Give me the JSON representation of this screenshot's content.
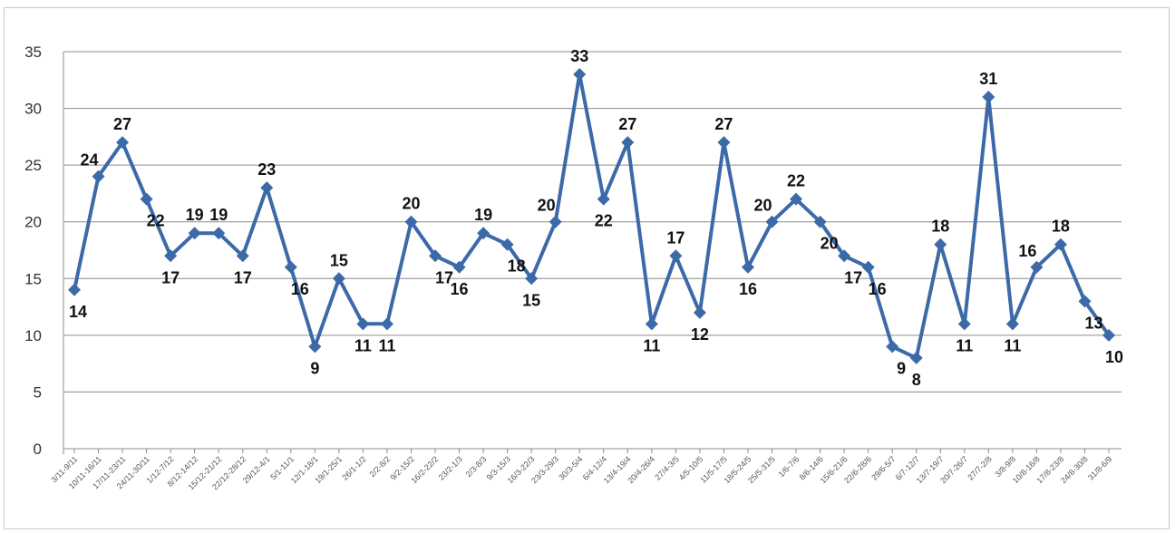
{
  "chart_data": {
    "type": "line",
    "title": "",
    "xlabel": "",
    "ylabel": "",
    "ylim": [
      0,
      35
    ],
    "yticks": [
      0,
      5,
      10,
      15,
      20,
      25,
      30,
      35
    ],
    "grid": true,
    "legend": "none",
    "line_color": "#3c6aa8",
    "categories": [
      "3/11-9/11",
      "10/11-16/11",
      "17/11-23/11",
      "24/11-30/11",
      "1/12-7/12",
      "8/12-14/12",
      "15/12-21/12",
      "22/12-28/12",
      "29/12-4/1",
      "5/1-11/1",
      "12/1-18/1",
      "19/1-25/1",
      "26/1-1/2",
      "2/2-8/2",
      "9/2-15/2",
      "16/2-22/2",
      "23/2-1/3",
      "2/3-8/3",
      "9/3-15/3",
      "16/3-22/3",
      "23/3-29/3",
      "30/3-5/4",
      "6/4-12/4",
      "13/4-19/4",
      "20/4-26/4",
      "27/4-3/5",
      "4/5-10/5",
      "11/5-17/5",
      "18/5-24/5",
      "25/5-31/5",
      "1/6-7/6",
      "8/6-14/6",
      "15/6-21/6",
      "22/6-28/6",
      "29/6-5/7",
      "6/7-12/7",
      "13/7-19/7",
      "20/7-26/7",
      "27/7-2/8",
      "3/8-9/8",
      "10/8-16/8",
      "17/8-23/8",
      "24/8-30/8",
      "31/8-6/9"
    ],
    "values": [
      14,
      24,
      27,
      22,
      17,
      19,
      19,
      17,
      23,
      16,
      9,
      15,
      11,
      11,
      20,
      17,
      16,
      19,
      18,
      15,
      20,
      33,
      22,
      27,
      11,
      17,
      12,
      27,
      16,
      20,
      22,
      20,
      17,
      16,
      9,
      8,
      18,
      11,
      31,
      11,
      16,
      18,
      13,
      10
    ],
    "data_labels": [
      "14",
      "24",
      "27",
      "22",
      "17",
      "19",
      "19",
      "17",
      "23",
      "16",
      "9",
      "15",
      "11",
      "11",
      "20",
      "17",
      "16",
      "19",
      "18",
      "15",
      "20",
      "33",
      "22",
      "27",
      "11",
      "17",
      "12",
      "27",
      "16",
      "20",
      "22",
      "20",
      "17",
      "16",
      "9",
      "8",
      "18",
      "11",
      "31",
      "11",
      "16",
      "18",
      "13",
      "10"
    ]
  }
}
